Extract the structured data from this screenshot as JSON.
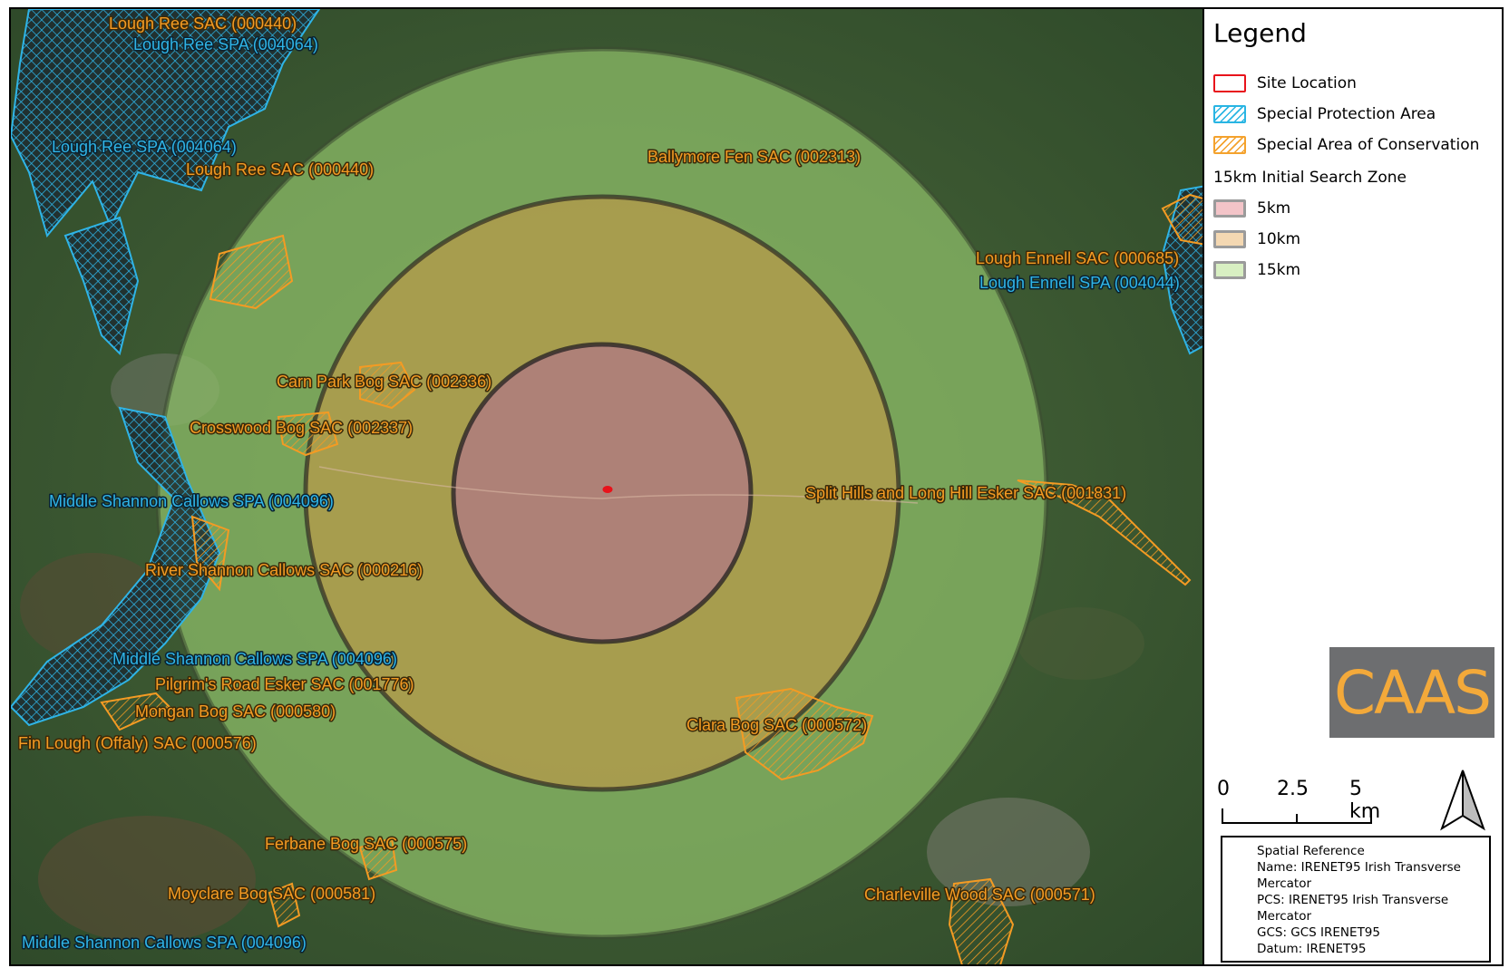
{
  "legend": {
    "title": "Legend",
    "items": [
      {
        "label": "Site Location",
        "color": "#e8131b"
      },
      {
        "label": "Special Protection Area",
        "color": "#29b5e3"
      },
      {
        "label": "Special Area of Conservation",
        "color": "#f4a22d"
      }
    ],
    "zone_header": "15km Initial Search Zone",
    "zones": [
      {
        "label": "5km",
        "color": "#f3c4c8"
      },
      {
        "label": "10km",
        "color": "#f4d8b2"
      },
      {
        "label": "15km",
        "color": "#d8efc2"
      }
    ]
  },
  "logo": {
    "text": "CAAS"
  },
  "scale_bar": {
    "ticks": [
      "0",
      "2.5",
      "5 km"
    ]
  },
  "spatial_reference": {
    "heading": "Spatial Reference",
    "name": "Name: IRENET95 Irish Transverse Mercator",
    "pcs": "PCS: IRENET95 Irish Transverse Mercator",
    "gcs": "GCS: GCS IRENET95",
    "datum": "Datum: IRENET95"
  },
  "map_labels": {
    "sac": [
      "Lough Ree SAC (000440)",
      "Lough Ree SAC (000440)",
      "Ballymore Fen SAC (002313)",
      "Lough Ennell SAC (000685)",
      "Carn Park Bog SAC (002336)",
      "Crosswood Bog SAC (002337)",
      "Split Hills and Long Hill Esker SAC (001831)",
      "River Shannon Callows SAC (000216)",
      "Pilgrim's Road Esker SAC (001776)",
      "Mongan Bog SAC (000580)",
      "Fin Lough (Offaly) SAC (000576)",
      "Clara Bog SAC (000572)",
      "Ferbane Bog SAC (000575)",
      "Moyclare Bog SAC (000581)",
      "Charleville Wood SAC (000571)"
    ],
    "spa": [
      "Lough Ree SPA (004064)",
      "Lough Ree SPA (004064)",
      "Lough Ennell SPA (004044)",
      "Middle Shannon Callows SPA (004096)",
      "Middle Shannon Callows SPA (004096)",
      "Middle Shannon Callows SPA (004096)"
    ]
  },
  "colors": {
    "sac": "#f49b23",
    "spa": "#2fb4e6",
    "site": "#e8131b",
    "buffer_5km": "#b97a86",
    "buffer_10km": "#b89a4a",
    "buffer_15km": "#8fbf6a",
    "satellite": "#3f5a33"
  }
}
